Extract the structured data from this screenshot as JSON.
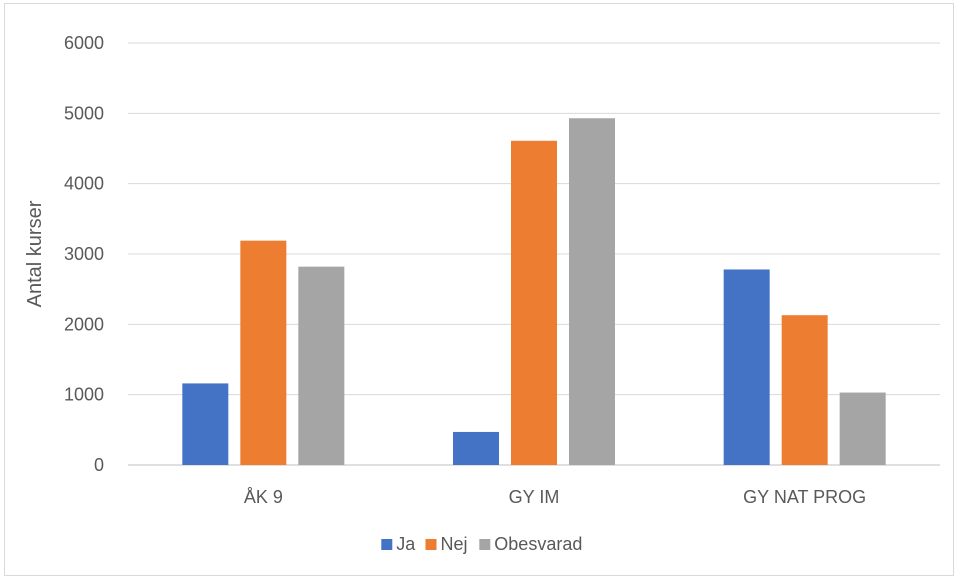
{
  "chart_data": {
    "type": "bar",
    "categories": [
      "ÅK 9",
      "GY IM",
      "GY NAT PROG"
    ],
    "series": [
      {
        "name": "Ja",
        "values": [
          1160,
          470,
          2780
        ],
        "color": "#4472C4"
      },
      {
        "name": "Nej",
        "values": [
          3190,
          4610,
          2130
        ],
        "color": "#ED7D31"
      },
      {
        "name": "Obesvarad",
        "values": [
          2820,
          4930,
          1030
        ],
        "color": "#A5A5A5"
      }
    ],
    "xlabel": "",
    "ylabel": "Antal kurser",
    "ylim": [
      0,
      6000
    ],
    "yticks": [
      0,
      1000,
      2000,
      3000,
      4000,
      5000,
      6000
    ],
    "grid": true,
    "legend_position": "bottom"
  }
}
